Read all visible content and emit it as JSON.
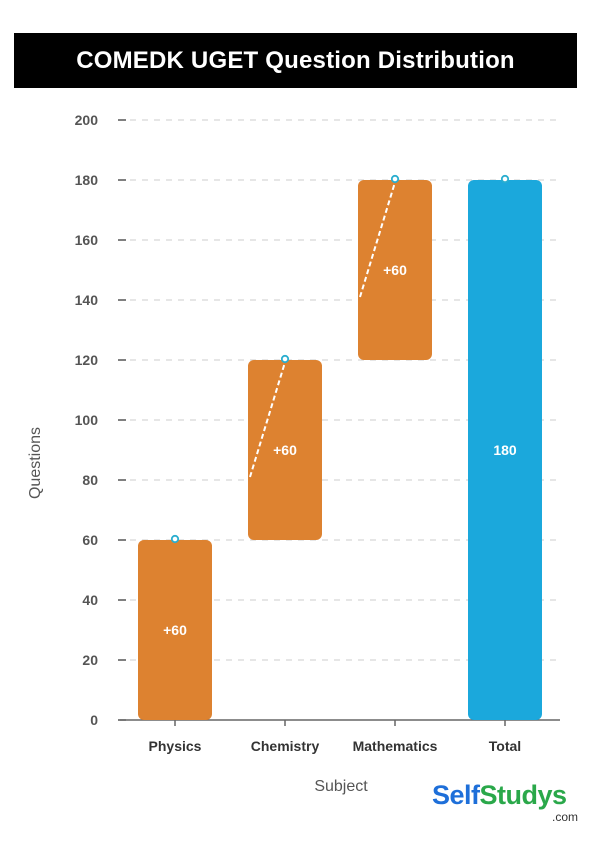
{
  "chart_data": {
    "type": "bar",
    "subtype": "waterfall",
    "title": "COMEDK UGET Question Distribution",
    "xlabel": "Subject",
    "ylabel": "Questions",
    "categories": [
      "Physics",
      "Chemistry",
      "Mathematics",
      "Total"
    ],
    "series": [
      {
        "increments": [
          60,
          60,
          60
        ],
        "total": 180,
        "labels": [
          "+60",
          "+60",
          "+60",
          "180"
        ]
      }
    ],
    "ylim": [
      0,
      200
    ],
    "yticks": [
      0,
      20,
      40,
      60,
      80,
      100,
      120,
      140,
      160,
      180,
      200
    ],
    "grid": true,
    "legend": "none"
  },
  "colors": {
    "increase": "#dd8230",
    "total": "#1ba8dc",
    "grid": "#dddddd",
    "marker": "#2aaecf"
  },
  "logo": {
    "brand_part1": "Self",
    "brand_part2": "Studys",
    "domain": ".com"
  }
}
